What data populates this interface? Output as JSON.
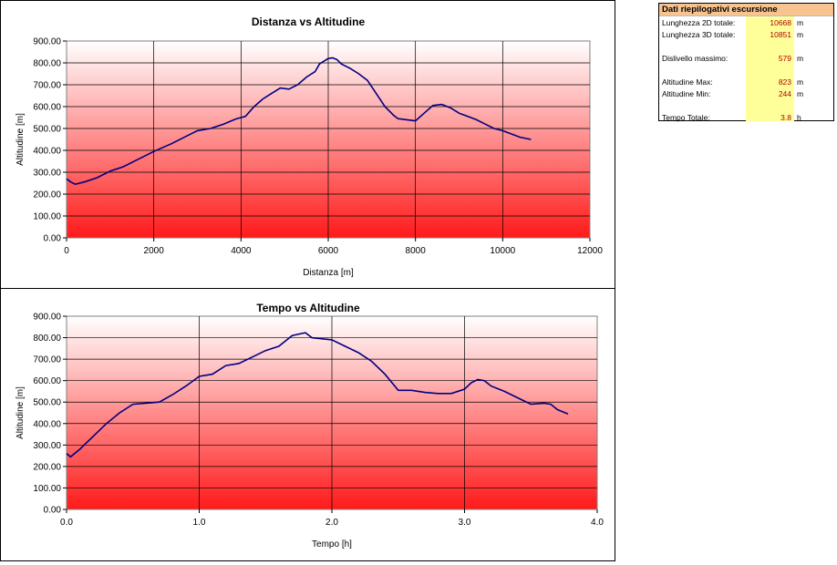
{
  "summary": {
    "title": "Dati riepilogativi escursione",
    "rows": [
      {
        "label": "Lunghezza 2D totale:",
        "value": "10668",
        "unit": "m"
      },
      {
        "label": "Lunghezza 3D totale:",
        "value": "10851",
        "unit": "m"
      },
      {
        "label": "Dislivello massimo:",
        "value": "579",
        "unit": "m"
      },
      {
        "label": "Altitudine Max:",
        "value": "823",
        "unit": "m"
      },
      {
        "label": "Altitudine Min:",
        "value": "244",
        "unit": "m"
      },
      {
        "label": "Tempo Totale:",
        "value": "3.8",
        "unit": "h"
      }
    ]
  },
  "chart_data": [
    {
      "type": "line",
      "title": "Distanza vs Altitudine",
      "xlabel": "Distanza [m]",
      "ylabel": "Altitudine [m]",
      "xlim": [
        0,
        12000
      ],
      "ylim": [
        0,
        900
      ],
      "xticks": [
        "0",
        "2000",
        "4000",
        "6000",
        "8000",
        "10000",
        "12000"
      ],
      "yticks": [
        "0.00",
        "100.00",
        "200.00",
        "300.00",
        "400.00",
        "500.00",
        "600.00",
        "700.00",
        "800.00",
        "900.00"
      ],
      "grid": true,
      "line_color": "#000080",
      "series": [
        {
          "x": [
            0,
            100,
            200,
            400,
            700,
            1000,
            1300,
            1600,
            2000,
            2400,
            2800,
            3000,
            3300,
            3600,
            3900,
            4100,
            4300,
            4500,
            4700,
            4900,
            5100,
            5300,
            5500,
            5700,
            5800,
            6000,
            6100,
            6200,
            6300,
            6500,
            6700,
            6900,
            7100,
            7300,
            7500,
            7600,
            7800,
            8000,
            8200,
            8400,
            8600,
            8800,
            9000,
            9200,
            9400,
            9600,
            9800,
            10000,
            10200,
            10400,
            10650
          ],
          "y": [
            270,
            255,
            245,
            255,
            275,
            305,
            325,
            355,
            395,
            430,
            470,
            490,
            500,
            520,
            545,
            555,
            600,
            635,
            660,
            685,
            680,
            700,
            735,
            760,
            795,
            820,
            823,
            815,
            795,
            775,
            750,
            720,
            660,
            600,
            560,
            545,
            540,
            535,
            570,
            605,
            610,
            595,
            570,
            555,
            540,
            520,
            500,
            490,
            475,
            460,
            450
          ]
        }
      ]
    },
    {
      "type": "line",
      "title": "Tempo vs Altitudine",
      "xlabel": "Tempo [h]",
      "ylabel": "Altitudine [m]",
      "xlim": [
        0,
        4
      ],
      "ylim": [
        0,
        900
      ],
      "xticks": [
        "0.0",
        "1.0",
        "2.0",
        "3.0",
        "4.0"
      ],
      "yticks": [
        "0.00",
        "100.00",
        "200.00",
        "300.00",
        "400.00",
        "500.00",
        "600.00",
        "700.00",
        "800.00",
        "900.00"
      ],
      "grid": true,
      "line_color": "#000080",
      "series": [
        {
          "x": [
            0,
            0.03,
            0.1,
            0.2,
            0.3,
            0.4,
            0.5,
            0.6,
            0.7,
            0.8,
            0.9,
            1.0,
            1.1,
            1.2,
            1.3,
            1.4,
            1.5,
            1.6,
            1.7,
            1.8,
            1.85,
            2.0,
            2.1,
            2.2,
            2.3,
            2.4,
            2.5,
            2.6,
            2.7,
            2.8,
            2.9,
            3.0,
            3.05,
            3.1,
            3.15,
            3.2,
            3.3,
            3.4,
            3.5,
            3.6,
            3.65,
            3.7,
            3.78
          ],
          "y": [
            260,
            245,
            280,
            340,
            400,
            450,
            490,
            495,
            500,
            535,
            575,
            620,
            630,
            670,
            680,
            710,
            740,
            760,
            810,
            823,
            800,
            790,
            760,
            730,
            690,
            630,
            555,
            555,
            545,
            540,
            540,
            560,
            590,
            605,
            600,
            575,
            550,
            520,
            490,
            495,
            490,
            465,
            445
          ]
        }
      ]
    }
  ]
}
